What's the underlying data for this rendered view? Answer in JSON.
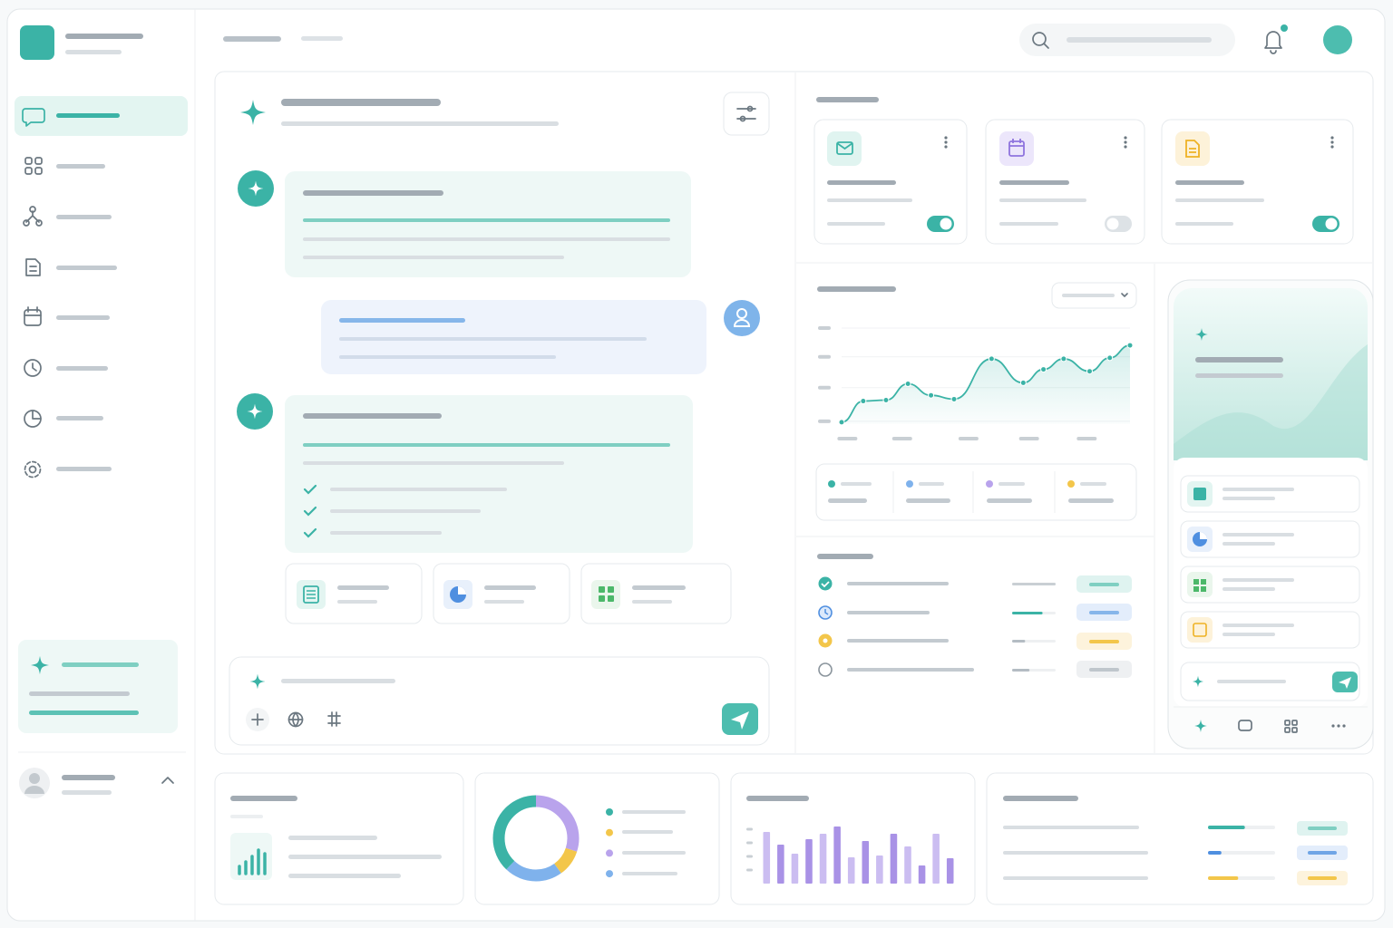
{
  "line_chart": {
    "type": "line",
    "color": "#3bb3a6",
    "x": [
      0,
      7.5,
      15.4,
      23,
      31,
      39,
      52,
      63,
      70,
      77,
      86,
      93,
      100
    ],
    "values": [
      2,
      24,
      25,
      42,
      30,
      26,
      68,
      43,
      57,
      68,
      55,
      69,
      82
    ],
    "xlim": [
      0,
      100
    ],
    "ylim": [
      0,
      100
    ],
    "xticks": [
      2,
      21,
      44,
      65,
      85
    ],
    "yticks": [
      3,
      38,
      70,
      100
    ],
    "grid": true
  },
  "donut": {
    "type": "pie",
    "values": [
      30,
      10,
      22,
      38
    ],
    "colors": [
      "#b9a3ec",
      "#f3c64a",
      "#7fb2ec",
      "#3bb3a6"
    ]
  },
  "bar_chart": {
    "type": "bar",
    "values": [
      57,
      43,
      33,
      49,
      55,
      63,
      29,
      47,
      31,
      55,
      41,
      20,
      55,
      28
    ],
    "colors": [
      "#cbbdf1",
      "#a992e6"
    ],
    "ylim": [
      0,
      70
    ],
    "yticks": [
      15,
      30,
      45,
      60
    ]
  },
  "task_progress": {
    "values": [
      100,
      70,
      30,
      40
    ],
    "colors": [
      "#c9cfd4",
      "#3bb3a6",
      "#b4bcc3",
      "#b4bcc3"
    ]
  },
  "summary_progress": {
    "values": [
      55,
      20,
      45
    ],
    "colors": [
      "#3bb3a6",
      "#4f8fe0",
      "#f3c64a"
    ]
  },
  "toggles": [
    true,
    false,
    true
  ]
}
